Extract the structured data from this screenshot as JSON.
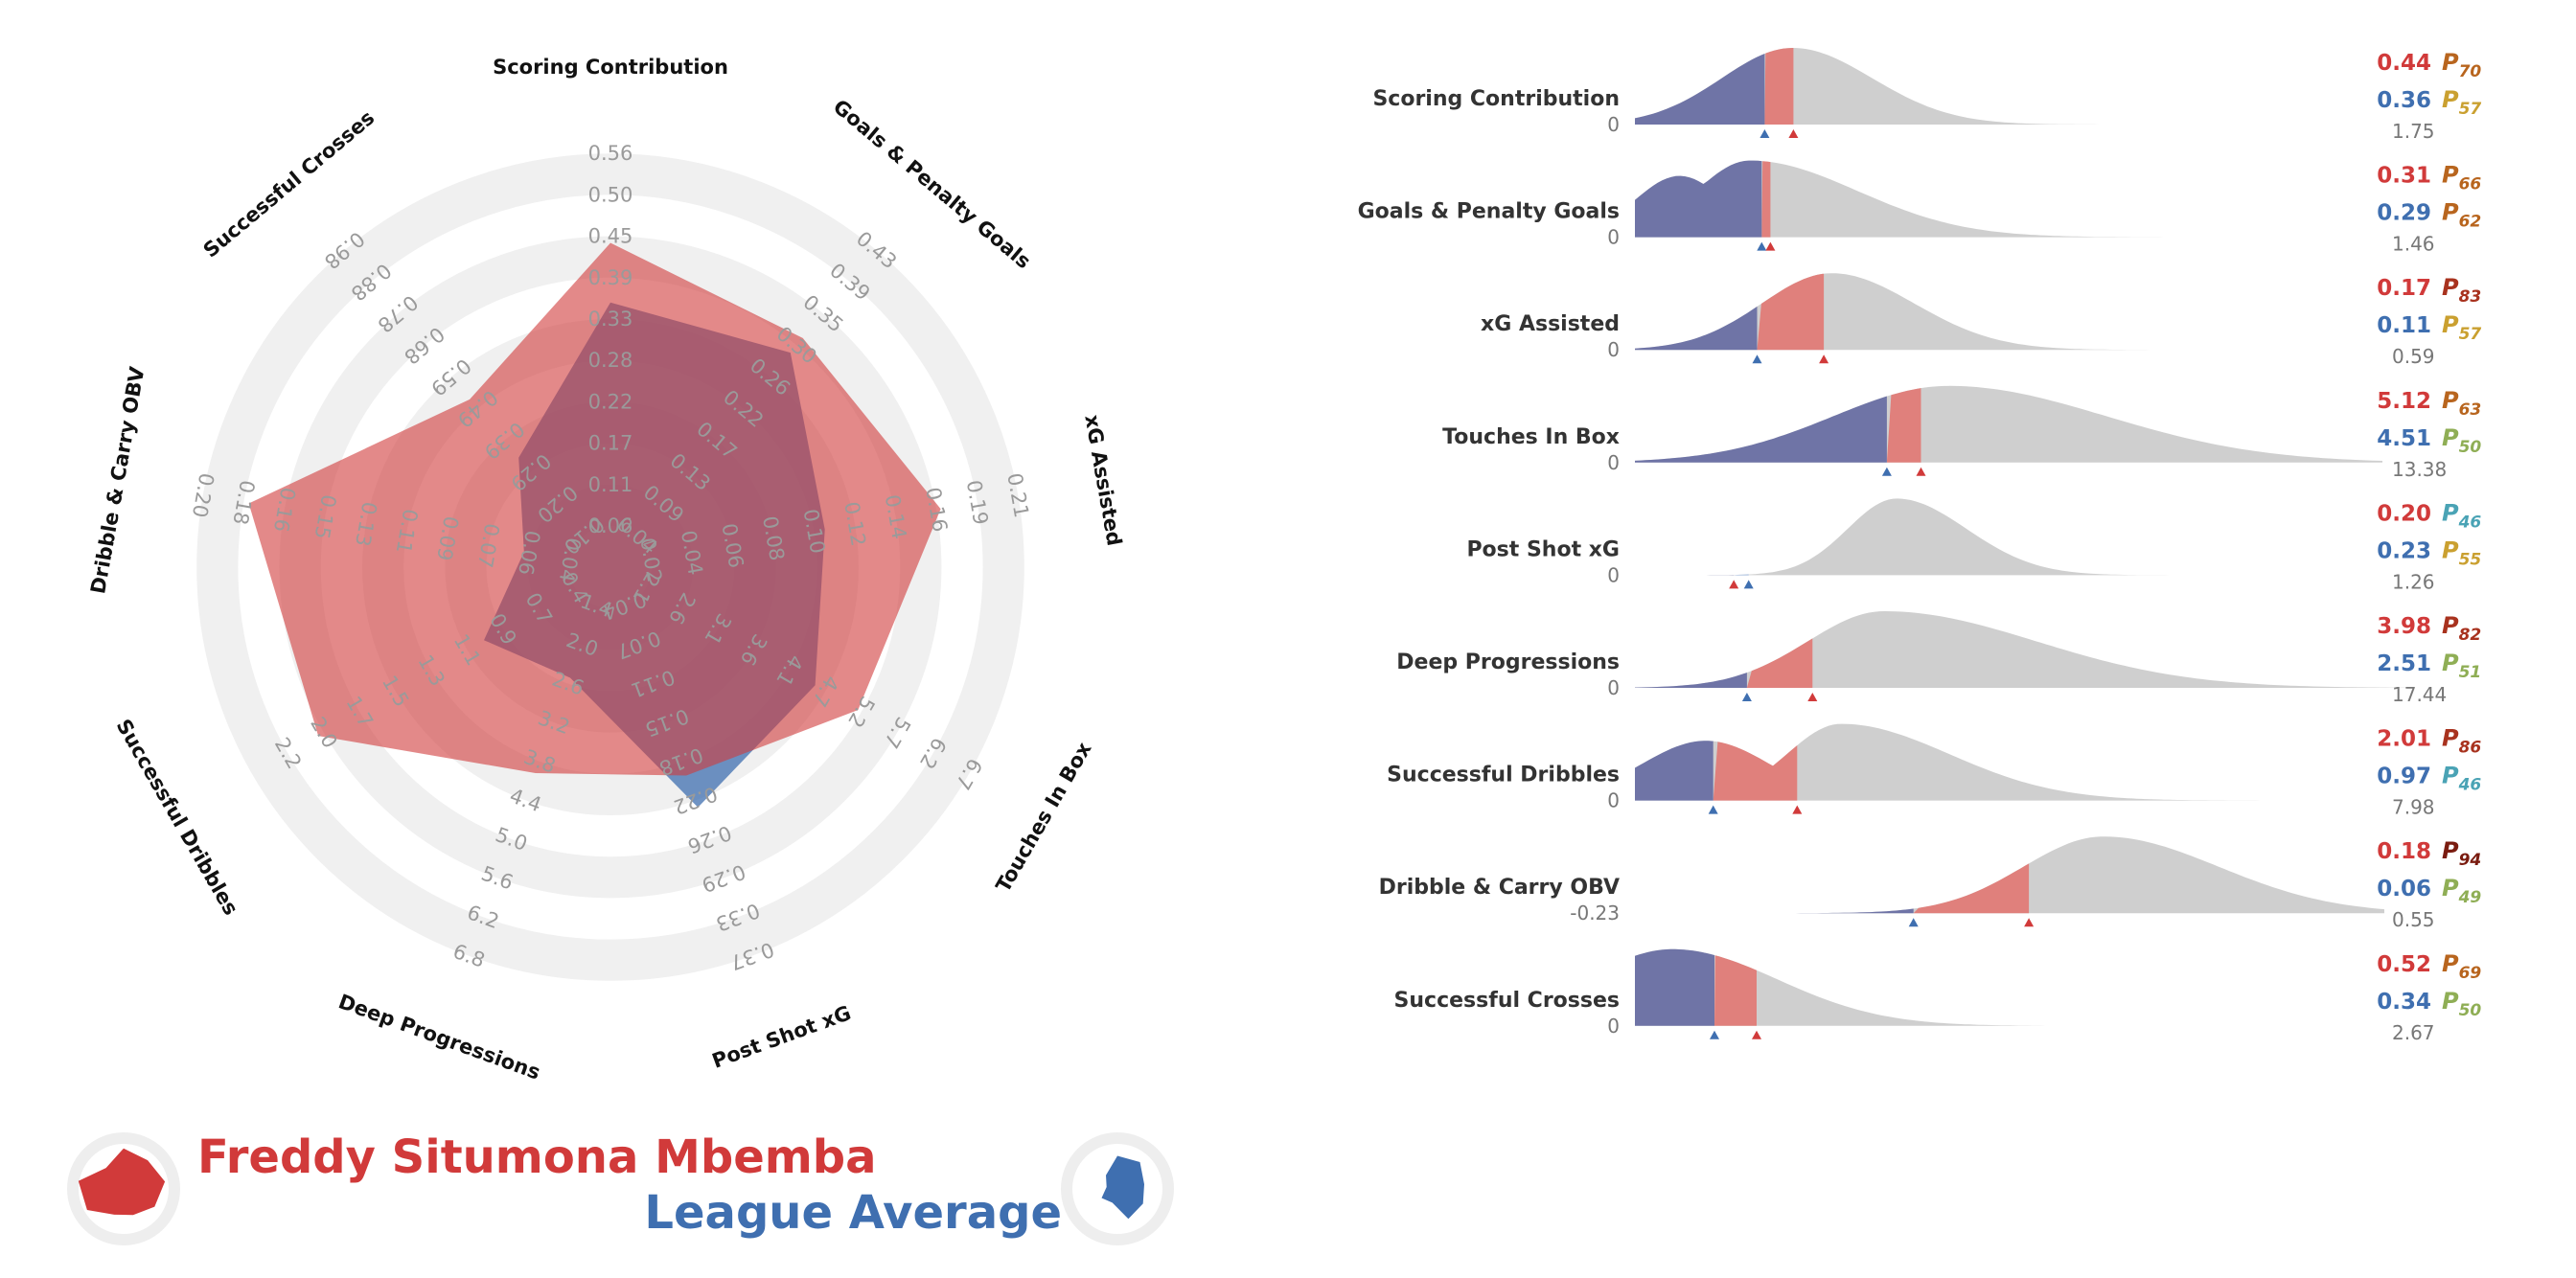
{
  "colors": {
    "player": "#d13a3a",
    "player_fill": "#e0807c",
    "average": "#3f6fb0",
    "average_fill": "#6f74a6",
    "ring": "#f0f0f0",
    "dist_grey": "#cfcfcf"
  },
  "legend": {
    "player_name": "Freddy Situmona Mbemba",
    "average_name": "League Average"
  },
  "chart_data": [
    {
      "type": "radar",
      "axes": [
        {
          "label": "Scoring Contribution",
          "ticks": [
            "0.06",
            "0.11",
            "0.17",
            "0.22",
            "0.28",
            "0.33",
            "0.39",
            "0.45",
            "0.50",
            "0.56"
          ],
          "player": 0.44,
          "average": 0.36
        },
        {
          "label": "Goals & Penalty Goals",
          "ticks": [
            "0.04",
            "0.09",
            "0.13",
            "0.17",
            "0.22",
            "0.26",
            "0.30",
            "0.35",
            "0.39",
            "0.43"
          ],
          "player": 0.31,
          "average": 0.29
        },
        {
          "label": "xG Assisted",
          "ticks": [
            "0.02",
            "0.04",
            "0.06",
            "0.08",
            "0.10",
            "0.12",
            "0.14",
            "0.16",
            "0.19",
            "0.21"
          ],
          "player": 0.17,
          "average": 0.11
        },
        {
          "label": "Touches In Box",
          "ticks": [
            "2.1",
            "2.6",
            "3.1",
            "3.6",
            "4.1",
            "4.7",
            "5.2",
            "5.7",
            "6.2",
            "6.7"
          ],
          "player": 5.12,
          "average": 4.51
        },
        {
          "label": "Post Shot xG",
          "ticks": [
            "0.04",
            "0.07",
            "0.11",
            "0.15",
            "0.18",
            "0.22",
            "0.26",
            "0.29",
            "0.33",
            "0.37"
          ],
          "player": 0.2,
          "average": 0.23
        },
        {
          "label": "Deep Progressions",
          "ticks": [
            "1.4",
            "2.0",
            "2.6",
            "3.2",
            "3.8",
            "4.4",
            "5.0",
            "5.6",
            "6.2",
            "6.8"
          ],
          "player": 3.98,
          "average": 2.51
        },
        {
          "label": "Successful Dribbles",
          "ticks": [
            "0.4",
            "0.7",
            "0.9",
            "1.1",
            "1.3",
            "1.5",
            "1.7",
            "2.0",
            "2.2",
            ""
          ],
          "player": 2.01,
          "average": 0.97
        },
        {
          "label": "Dribble & Carry OBV",
          "ticks": [
            "0.04",
            "0.06",
            "0.07",
            "0.09",
            "0.11",
            "0.13",
            "0.15",
            "0.16",
            "0.18",
            "0.20"
          ],
          "player": 0.18,
          "average": 0.06
        },
        {
          "label": "Successful Crosses",
          "ticks": [
            "0.10",
            "0.20",
            "0.29",
            "0.39",
            "0.49",
            "0.59",
            "0.68",
            "0.78",
            "0.88",
            "0.98"
          ],
          "player": 0.52,
          "average": 0.34
        }
      ]
    },
    {
      "type": "area",
      "metrics": [
        {
          "label": "Scoring Contribution",
          "min": "0",
          "max": "1.75",
          "player": "0.44",
          "average": "0.36",
          "player_pct": "70",
          "average_pct": "57"
        },
        {
          "label": "Goals & Penalty Goals",
          "min": "0",
          "max": "1.46",
          "player": "0.31",
          "average": "0.29",
          "player_pct": "66",
          "average_pct": "62"
        },
        {
          "label": "xG Assisted",
          "min": "0",
          "max": "0.59",
          "player": "0.17",
          "average": "0.11",
          "player_pct": "83",
          "average_pct": "57"
        },
        {
          "label": "Touches In Box",
          "min": "0",
          "max": "13.38",
          "player": "5.12",
          "average": "4.51",
          "player_pct": "63",
          "average_pct": "50"
        },
        {
          "label": "Post Shot xG",
          "min": "0",
          "max": "1.26",
          "player": "0.20",
          "average": "0.23",
          "player_pct": "46",
          "average_pct": "55"
        },
        {
          "label": "Deep Progressions",
          "min": "0",
          "max": "17.44",
          "player": "3.98",
          "average": "2.51",
          "player_pct": "82",
          "average_pct": "51"
        },
        {
          "label": "Successful Dribbles",
          "min": "0",
          "max": "7.98",
          "player": "2.01",
          "average": "0.97",
          "player_pct": "86",
          "average_pct": "46"
        },
        {
          "label": "Dribble & Carry OBV",
          "min": "-0.23",
          "max": "0.55",
          "player": "0.18",
          "average": "0.06",
          "player_pct": "94",
          "average_pct": "49"
        },
        {
          "label": "Successful Crosses",
          "min": "0",
          "max": "2.67",
          "player": "0.52",
          "average": "0.34",
          "player_pct": "69",
          "average_pct": "50"
        }
      ]
    }
  ]
}
